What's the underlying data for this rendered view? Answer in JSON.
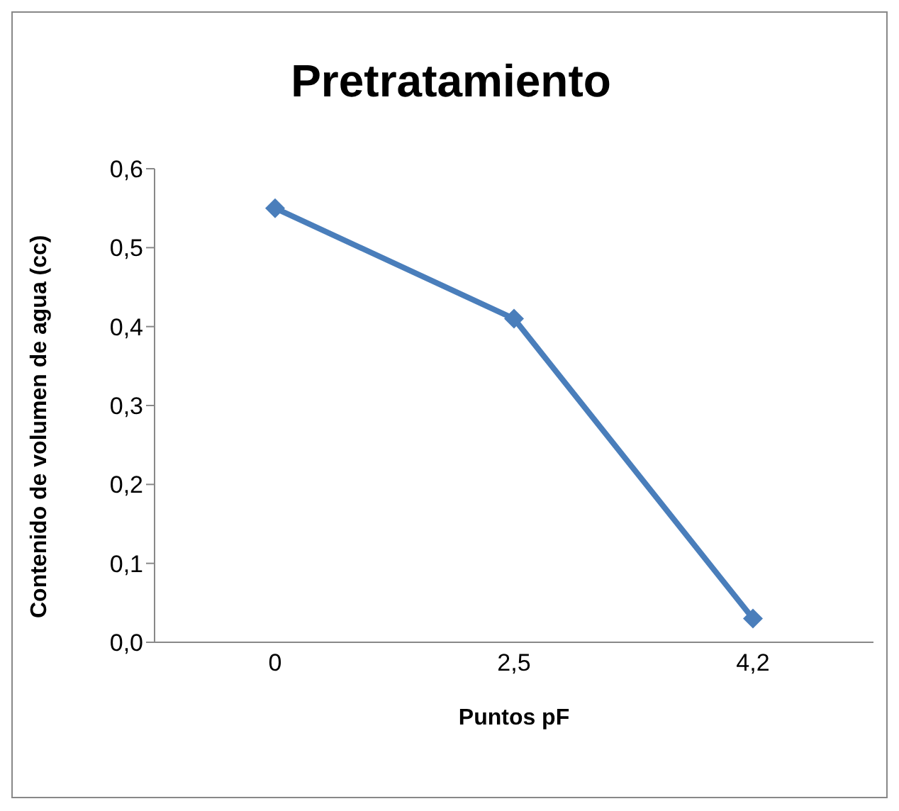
{
  "chart_data": {
    "type": "line",
    "title": "Pretratamiento",
    "xlabel": "Puntos pF",
    "ylabel": "Contenido de volumen de agua (cc)",
    "categories": [
      "0",
      "2,5",
      "4,2"
    ],
    "series": [
      {
        "color": "#4a7ebb",
        "values": [
          0.55,
          0.41,
          0.03
        ]
      }
    ],
    "ylim": [
      0,
      0.6
    ],
    "yticks": [
      {
        "value": 0,
        "label": "0,0"
      },
      {
        "value": 0.1,
        "label": "0,1"
      },
      {
        "value": 0.2,
        "label": "0,2"
      },
      {
        "value": 0.3,
        "label": "0,3"
      },
      {
        "value": 0.4,
        "label": "0,4"
      },
      {
        "value": 0.5,
        "label": "0,5"
      },
      {
        "value": 0.6,
        "label": "0,6"
      }
    ],
    "grid": false,
    "legend": false,
    "marker": "diamond",
    "line_style": "solid"
  }
}
